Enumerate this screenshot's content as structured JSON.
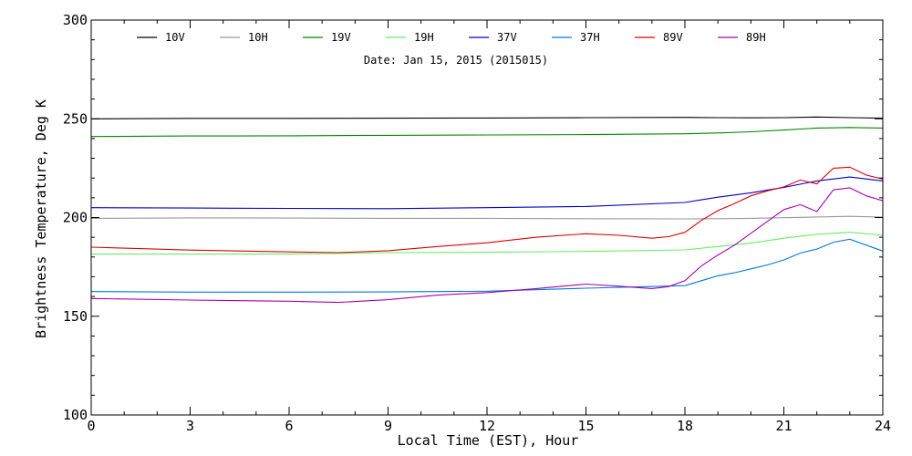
{
  "chart_data": {
    "type": "line",
    "subtitle": "Date: Jan 15, 2015 (2015015)",
    "xlabel": "Local Time (EST), Hour",
    "ylabel": "Brightness Temperature, Deg K",
    "xlim": [
      0,
      24
    ],
    "ylim": [
      100,
      300
    ],
    "xticks": [
      0,
      3,
      6,
      9,
      12,
      15,
      18,
      21,
      24
    ],
    "yticks": [
      100,
      150,
      200,
      250,
      300
    ],
    "grid": false,
    "legend_position": "top",
    "series": [
      {
        "name": "10V",
        "color": "#000000",
        "x": [
          0,
          3,
          6,
          9,
          12,
          15,
          18,
          19,
          20,
          21,
          22,
          23,
          24
        ],
        "y": [
          250,
          250.2,
          250.2,
          250.3,
          250.4,
          250.6,
          250.7,
          250.6,
          250.5,
          250.6,
          250.9,
          250.6,
          250.3
        ]
      },
      {
        "name": "10H",
        "color": "#999999",
        "x": [
          0,
          3,
          6,
          9,
          12,
          15,
          18,
          19,
          20,
          21,
          22,
          23,
          24
        ],
        "y": [
          199.6,
          199.8,
          199.7,
          199.6,
          199.6,
          199.4,
          199.3,
          199.4,
          199.6,
          199.9,
          200.3,
          200.6,
          200.2
        ]
      },
      {
        "name": "19V",
        "color": "#008800",
        "x": [
          0,
          3,
          6,
          9,
          12,
          15,
          18,
          19,
          20,
          21,
          22,
          23,
          24
        ],
        "y": [
          241,
          241.3,
          241.4,
          241.6,
          241.8,
          242,
          242.4,
          242.8,
          243.4,
          244.3,
          245.3,
          245.6,
          245.3
        ]
      },
      {
        "name": "19H",
        "color": "#66ee66",
        "x": [
          0,
          3,
          6,
          9,
          12,
          15,
          18,
          19,
          20,
          21,
          22,
          23,
          24
        ],
        "y": [
          181.5,
          181.5,
          181.5,
          182.2,
          182.4,
          182.8,
          183.6,
          185.3,
          187,
          189.5,
          191.5,
          192.5,
          191
        ]
      },
      {
        "name": "37V",
        "color": "#0000cc",
        "x": [
          0,
          3,
          6,
          9,
          12,
          15,
          18,
          19,
          20,
          21,
          22,
          23,
          24
        ],
        "y": [
          205,
          204.8,
          204.6,
          204.5,
          205,
          205.6,
          207.6,
          210.3,
          212.5,
          215.3,
          218.5,
          220.5,
          218.5
        ]
      },
      {
        "name": "37H",
        "color": "#0077dd",
        "x": [
          0,
          3,
          6,
          9,
          12,
          15,
          18,
          18.5,
          19,
          19.5,
          20,
          20.5,
          21,
          21.5,
          22,
          22.5,
          23,
          23.5,
          24
        ],
        "y": [
          162.5,
          162.2,
          162.2,
          162.3,
          162.7,
          164.2,
          165.5,
          168,
          170.5,
          172,
          174,
          176,
          178.5,
          182,
          184,
          187.5,
          189,
          186,
          183
        ]
      },
      {
        "name": "89V",
        "color": "#dd0000",
        "x": [
          0,
          3,
          6,
          7.5,
          9,
          10.5,
          12,
          13.5,
          15,
          16,
          17,
          17.5,
          18,
          18.5,
          19,
          19.5,
          20,
          20.5,
          21,
          21.5,
          22,
          22.5,
          23,
          23.5,
          24
        ],
        "y": [
          185,
          183.5,
          182.6,
          182.2,
          183.2,
          185.3,
          187.2,
          190,
          191.8,
          191,
          189.5,
          190.3,
          192.5,
          198.5,
          203.5,
          207,
          211,
          213.5,
          215.5,
          219,
          217,
          225,
          225.5,
          221.5,
          219.5
        ]
      },
      {
        "name": "89H",
        "color": "#aa00aa",
        "x": [
          0,
          3,
          6,
          7.5,
          9,
          10.5,
          12,
          13.5,
          15,
          16,
          17,
          17.5,
          18,
          18.5,
          19,
          19.5,
          20,
          20.5,
          21,
          21.5,
          22,
          22.5,
          23,
          23.5,
          24
        ],
        "y": [
          159,
          158.2,
          157.6,
          157,
          158.4,
          160.7,
          162,
          164,
          166.3,
          165.2,
          164,
          165,
          168,
          175.5,
          181,
          186,
          192,
          198,
          204,
          206.5,
          203,
          214,
          215,
          211,
          208.5
        ]
      }
    ]
  }
}
